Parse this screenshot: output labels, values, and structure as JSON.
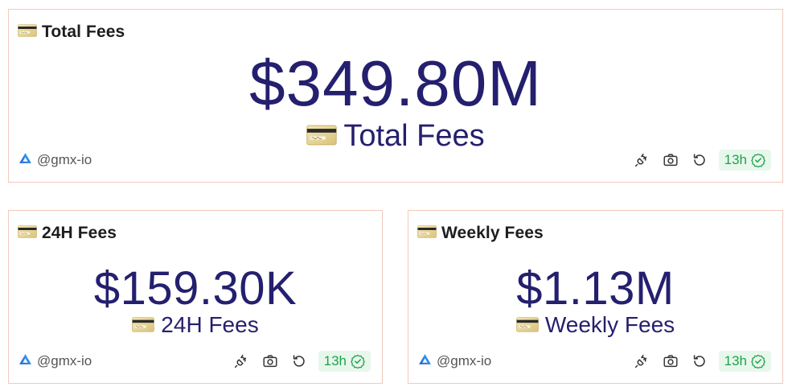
{
  "colors": {
    "value": "#241f6e",
    "border": "#f3c9bd",
    "badge_bg": "#e8f7ec",
    "badge_text": "#1fa34a"
  },
  "cards": [
    {
      "title": "Total Fees",
      "icon": "credit-card-icon",
      "value": "$349.80M",
      "sub_label": "Total Fees",
      "source": "@gmx-io",
      "source_icon": "gmx-logo-icon",
      "badge": "13h",
      "actions": [
        "embed-icon",
        "camera-icon",
        "refresh-icon"
      ]
    },
    {
      "title": "24H Fees",
      "icon": "credit-card-icon",
      "value": "$159.30K",
      "sub_label": "24H Fees",
      "source": "@gmx-io",
      "source_icon": "gmx-logo-icon",
      "badge": "13h",
      "actions": [
        "embed-icon",
        "camera-icon",
        "refresh-icon"
      ]
    },
    {
      "title": "Weekly Fees",
      "icon": "credit-card-icon",
      "value": "$1.13M",
      "sub_label": "Weekly Fees",
      "source": "@gmx-io",
      "source_icon": "gmx-logo-icon",
      "badge": "13h",
      "actions": [
        "embed-icon",
        "camera-icon",
        "refresh-icon"
      ]
    }
  ]
}
